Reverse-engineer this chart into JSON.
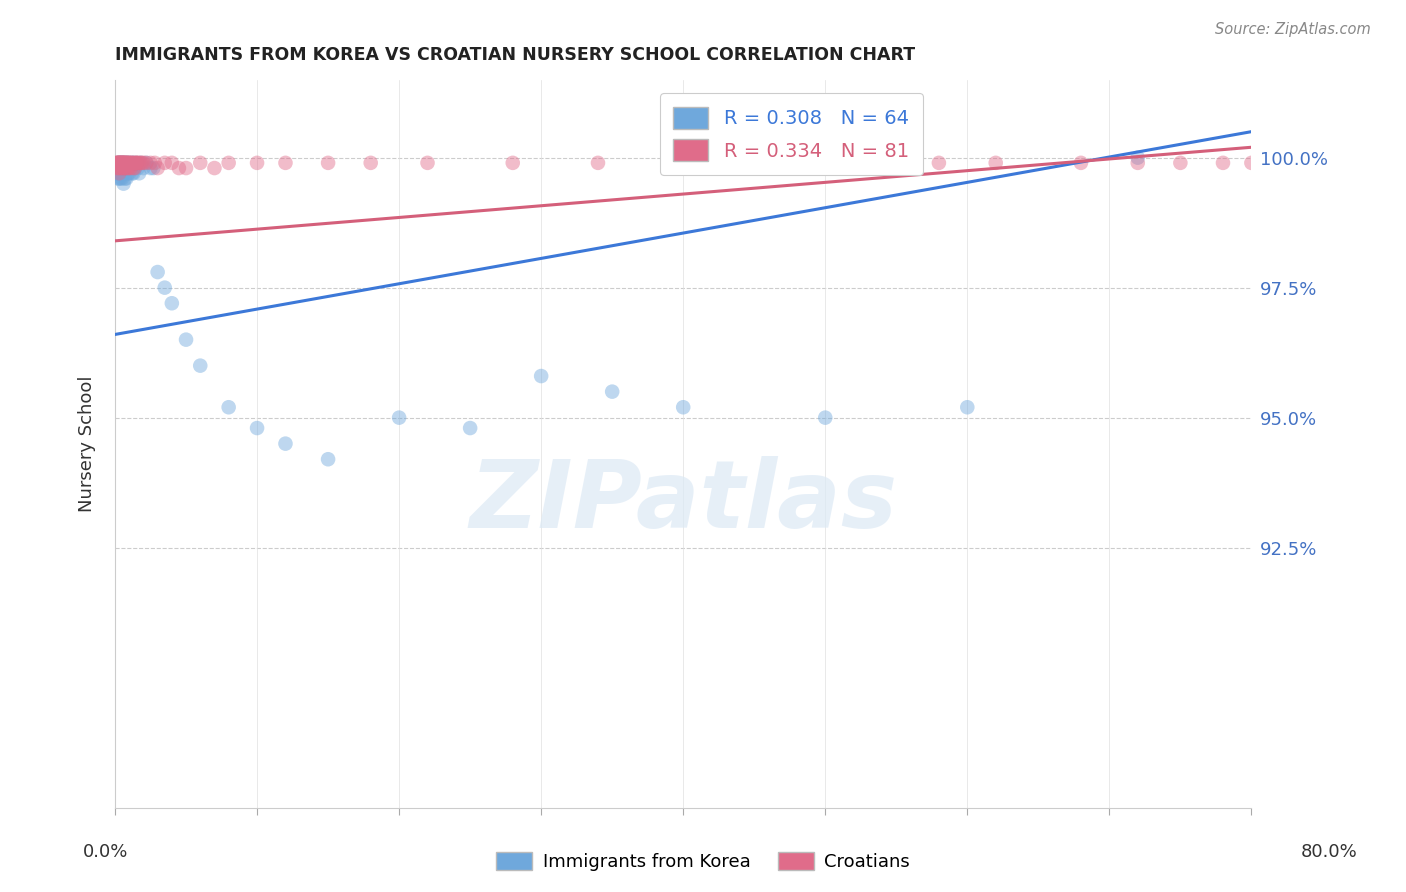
{
  "title": "IMMIGRANTS FROM KOREA VS CROATIAN NURSERY SCHOOL CORRELATION CHART",
  "source": "Source: ZipAtlas.com",
  "ylabel": "Nursery School",
  "ytick_labels": [
    "92.5%",
    "95.0%",
    "97.5%",
    "100.0%"
  ],
  "ytick_values": [
    0.925,
    0.95,
    0.975,
    1.0
  ],
  "xlim": [
    0.0,
    0.8
  ],
  "ylim": [
    0.875,
    1.015
  ],
  "xlim_display": [
    0.0,
    0.8
  ],
  "legend_blue_label": "R = 0.308   N = 64",
  "legend_pink_label": "R = 0.334   N = 81",
  "blue_color": "#6fa8dc",
  "pink_color": "#e06c8a",
  "blue_line_color": "#3c78d8",
  "pink_line_color": "#d45f7a",
  "watermark_text": "ZIPatlas",
  "blue_R": 0.308,
  "blue_N": 64,
  "pink_R": 0.334,
  "pink_N": 81,
  "blue_scatter_x": [
    0.001,
    0.001,
    0.002,
    0.002,
    0.002,
    0.002,
    0.003,
    0.003,
    0.003,
    0.003,
    0.003,
    0.004,
    0.004,
    0.004,
    0.005,
    0.005,
    0.005,
    0.005,
    0.005,
    0.006,
    0.006,
    0.006,
    0.006,
    0.007,
    0.007,
    0.007,
    0.008,
    0.008,
    0.008,
    0.009,
    0.009,
    0.01,
    0.01,
    0.011,
    0.012,
    0.012,
    0.013,
    0.013,
    0.014,
    0.015,
    0.016,
    0.017,
    0.018,
    0.02,
    0.022,
    0.025,
    0.027,
    0.03,
    0.035,
    0.04,
    0.05,
    0.06,
    0.08,
    0.1,
    0.12,
    0.15,
    0.2,
    0.25,
    0.3,
    0.35,
    0.4,
    0.5,
    0.6,
    0.72
  ],
  "blue_scatter_y": [
    0.998,
    0.997,
    0.999,
    0.998,
    0.997,
    0.996,
    0.999,
    0.999,
    0.998,
    0.997,
    0.996,
    0.999,
    0.998,
    0.996,
    0.999,
    0.999,
    0.998,
    0.997,
    0.996,
    0.999,
    0.998,
    0.997,
    0.995,
    0.999,
    0.998,
    0.996,
    0.999,
    0.998,
    0.996,
    0.999,
    0.997,
    0.999,
    0.997,
    0.998,
    0.999,
    0.997,
    0.999,
    0.997,
    0.998,
    0.999,
    0.998,
    0.997,
    0.999,
    0.998,
    0.999,
    0.998,
    0.998,
    0.978,
    0.975,
    0.972,
    0.965,
    0.96,
    0.952,
    0.948,
    0.945,
    0.942,
    0.95,
    0.948,
    0.958,
    0.955,
    0.952,
    0.95,
    0.952,
    1.0
  ],
  "pink_scatter_x": [
    0.001,
    0.001,
    0.001,
    0.002,
    0.002,
    0.002,
    0.002,
    0.003,
    0.003,
    0.003,
    0.003,
    0.003,
    0.004,
    0.004,
    0.004,
    0.004,
    0.005,
    0.005,
    0.005,
    0.005,
    0.006,
    0.006,
    0.006,
    0.006,
    0.007,
    0.007,
    0.007,
    0.007,
    0.008,
    0.008,
    0.008,
    0.009,
    0.009,
    0.009,
    0.01,
    0.01,
    0.01,
    0.011,
    0.011,
    0.012,
    0.012,
    0.013,
    0.013,
    0.014,
    0.014,
    0.015,
    0.015,
    0.016,
    0.017,
    0.018,
    0.019,
    0.02,
    0.022,
    0.025,
    0.028,
    0.03,
    0.035,
    0.04,
    0.045,
    0.05,
    0.06,
    0.07,
    0.08,
    0.1,
    0.12,
    0.15,
    0.18,
    0.22,
    0.28,
    0.34,
    0.4,
    0.46,
    0.52,
    0.58,
    0.62,
    0.68,
    0.72,
    0.75,
    0.78,
    0.8,
    0.81
  ],
  "pink_scatter_y": [
    0.999,
    0.999,
    0.998,
    0.999,
    0.999,
    0.999,
    0.998,
    0.999,
    0.999,
    0.999,
    0.998,
    0.997,
    0.999,
    0.999,
    0.999,
    0.998,
    0.999,
    0.999,
    0.999,
    0.998,
    0.999,
    0.999,
    0.999,
    0.998,
    0.999,
    0.999,
    0.999,
    0.998,
    0.999,
    0.999,
    0.998,
    0.999,
    0.999,
    0.998,
    0.999,
    0.999,
    0.998,
    0.999,
    0.998,
    0.999,
    0.999,
    0.999,
    0.998,
    0.999,
    0.998,
    0.999,
    0.999,
    0.999,
    0.999,
    0.999,
    0.999,
    0.999,
    0.999,
    0.999,
    0.999,
    0.998,
    0.999,
    0.999,
    0.998,
    0.998,
    0.999,
    0.998,
    0.999,
    0.999,
    0.999,
    0.999,
    0.999,
    0.999,
    0.999,
    0.999,
    0.999,
    0.999,
    0.999,
    0.999,
    0.999,
    0.999,
    0.999,
    0.999,
    0.999,
    0.999,
    0.999
  ]
}
